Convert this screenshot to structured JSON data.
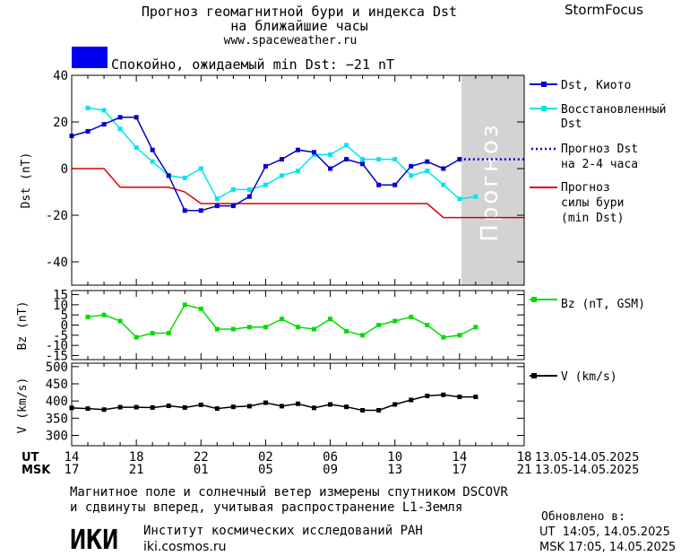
{
  "header": {
    "title_line1": "Прогноз геомагнитной бури и индекса Dst",
    "title_line2": "на ближайшие часы",
    "url": "www.spaceweather.ru",
    "brand": "StormFocus"
  },
  "status": {
    "text": "Спокойно, ожидаемый min Dst: −21 nT",
    "color": "#0000ee"
  },
  "forecast_zone_label": "Прогноз",
  "legend": {
    "dst_kyoto": "Dst, Киото",
    "restored_line1": "Восстановленный",
    "restored_line2": "Dst",
    "forecast_line1": "Прогноз Dst",
    "forecast_line2": "на 2-4 часа",
    "storm_line1": "Прогноз",
    "storm_line2": "силы бури",
    "storm_line3": "(min Dst)",
    "bz": "Bz (nT, GSM)",
    "v": "V (km/s)"
  },
  "time_axis": {
    "ut_label": "UT",
    "msk_label": "MSK",
    "ut_ticks": [
      "14",
      "18",
      "22",
      "02",
      "06",
      "10",
      "14",
      "18"
    ],
    "msk_ticks": [
      "17",
      "21",
      "01",
      "05",
      "09",
      "13",
      "17",
      "21"
    ],
    "ut_range": "13.05-14.05.2025",
    "msk_range": "13.05-14.05.2025"
  },
  "footer": {
    "note_line1": "Магнитное поле и солнечный ветер измерены спутником DSCOVR",
    "note_line2": "и сдвинуты вперед, учитывая распространение L1-Земля",
    "logo": "ИКИ",
    "institute_name": "Институт космических исследований РАН",
    "institute_url": "iki.cosmos.ru",
    "updated_label": "Обновлено в:",
    "updated_ut": "UT  14:05, 14.05.2025",
    "updated_msk": "MSK 17:05, 14.05.2025"
  },
  "chart_data": [
    {
      "type": "line",
      "name": "dst",
      "ylabel": "Dst (nT)",
      "ylim": [
        -50,
        40
      ],
      "yticks": [
        -40,
        -20,
        0,
        20,
        40
      ],
      "xlim": [
        0,
        28
      ],
      "forecast_zone": [
        24,
        28
      ],
      "colors": {
        "dst_kyoto": "#0000cc",
        "restored": "#00e5ee",
        "forecast": "#0000cc",
        "storm": "#dd0000",
        "zone": "#d3d3d3"
      },
      "series": [
        {
          "name": "Dst, Киото",
          "x": [
            0,
            1,
            2,
            3,
            4,
            5,
            6,
            7,
            8,
            9,
            10,
            11,
            12,
            13,
            14,
            15,
            16,
            17,
            18,
            19,
            20,
            21,
            22,
            23,
            24
          ],
          "y": [
            14,
            16,
            19,
            22,
            22,
            8,
            -3,
            -18,
            -18,
            -16,
            -16,
            -12,
            1,
            4,
            8,
            7,
            0,
            4,
            2,
            -7,
            -7,
            1,
            3,
            0,
            4
          ]
        },
        {
          "name": "Восстановленный Dst",
          "x": [
            1,
            2,
            3,
            4,
            5,
            6,
            7,
            8,
            9,
            10,
            11,
            12,
            13,
            14,
            15,
            16,
            17,
            18,
            19,
            20,
            21,
            22,
            23,
            24,
            25
          ],
          "y": [
            26,
            25,
            17,
            9,
            3,
            -3,
            -4,
            0,
            -13,
            -9,
            -9,
            -7,
            -3,
            -1,
            6,
            6,
            10,
            4,
            4,
            4,
            -3,
            -1,
            -7,
            -13,
            -12
          ]
        },
        {
          "name": "Прогноз Dst на 2-4 часа",
          "x": [
            24,
            28
          ],
          "y": [
            4,
            4
          ]
        },
        {
          "name": "Прогноз силы бури (min Dst)",
          "x": [
            0,
            2,
            3,
            6,
            7,
            8,
            22,
            23,
            28
          ],
          "y": [
            0,
            0,
            -8,
            -8,
            -10,
            -15,
            -15,
            -21,
            -21
          ]
        }
      ]
    },
    {
      "type": "line",
      "name": "bz",
      "ylabel": "Bz (nT)",
      "ylim": [
        -17,
        17
      ],
      "yticks": [
        -15,
        -10,
        -5,
        0,
        5,
        10,
        15
      ],
      "xlim": [
        0,
        28
      ],
      "colors": {
        "bz": "#00dd00"
      },
      "series": [
        {
          "name": "Bz (nT, GSM)",
          "x": [
            1,
            2,
            3,
            4,
            5,
            6,
            7,
            8,
            9,
            10,
            11,
            12,
            13,
            14,
            15,
            16,
            17,
            18,
            19,
            20,
            21,
            22,
            23,
            24,
            25
          ],
          "y": [
            4,
            5,
            2,
            -6,
            -4,
            -4,
            10,
            8,
            -2,
            -2,
            -1,
            -1,
            3,
            -1,
            -2,
            3,
            -3,
            -5,
            0,
            2,
            4,
            0,
            -6,
            -5,
            -1
          ]
        }
      ]
    },
    {
      "type": "line",
      "name": "v",
      "ylabel": "V (km/s)",
      "ylim": [
        270,
        510
      ],
      "yticks": [
        300,
        350,
        400,
        450,
        500
      ],
      "xlim": [
        0,
        28
      ],
      "colors": {
        "v": "#000000"
      },
      "series": [
        {
          "name": "V (km/s)",
          "x": [
            0,
            1,
            2,
            3,
            4,
            5,
            6,
            7,
            8,
            9,
            10,
            11,
            12,
            13,
            14,
            15,
            16,
            17,
            18,
            19,
            20,
            21,
            22,
            23,
            24,
            25
          ],
          "y": [
            380,
            378,
            375,
            382,
            382,
            381,
            386,
            381,
            389,
            378,
            383,
            385,
            395,
            385,
            392,
            380,
            390,
            383,
            373,
            373,
            390,
            403,
            415,
            418,
            412,
            412
          ]
        }
      ]
    }
  ]
}
